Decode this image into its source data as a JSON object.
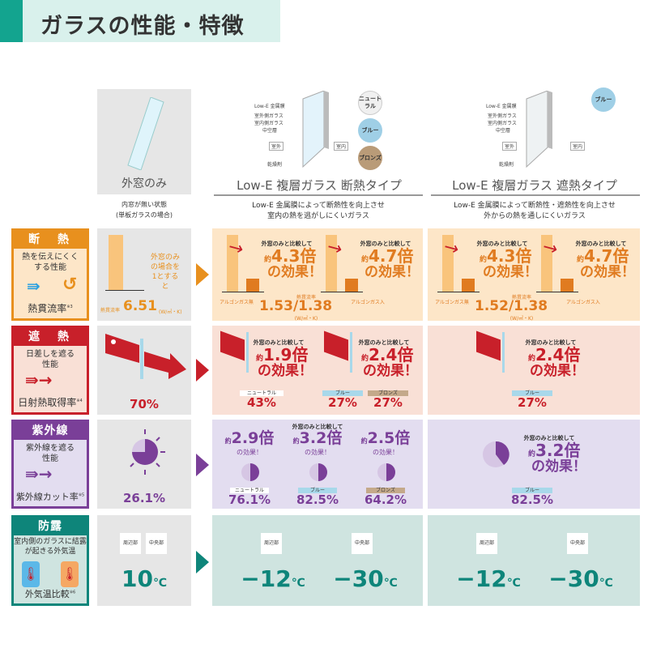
{
  "title": "ガラスの性能・特徴",
  "colors": {
    "teal": "#13a48f",
    "orange": "#e8901e",
    "red": "#c8202a",
    "purple": "#7a3f98",
    "dew": "#0e857a"
  },
  "columns": {
    "outer": {
      "title": "外窓のみ",
      "desc1": "内窓が無い状態",
      "desc2": "(単板ガラスの場合)"
    },
    "insul": {
      "title": "Low-E 複層ガラス 断熱タイプ",
      "desc1": "Low-E 金属膜によって断熱性を向上させ",
      "desc2": "室内の熱を逃がしにくいガラス",
      "colors": [
        "ニュートラル",
        "ブルー",
        "ブロンズ"
      ]
    },
    "shade": {
      "title": "Low-E 複層ガラス 遮熱タイプ",
      "desc1": "Low-E 金属膜によって断熱性・遮熱性を向上させ",
      "desc2": "外からの熱を通しにくいガラス",
      "colors": [
        "ブルー"
      ]
    }
  },
  "glass_labels": {
    "lowe": "Low-E 金属膜",
    "outside_glass": "室外側ガラス",
    "inside_glass": "室内側ガラス",
    "hollow": "中空層",
    "outside": "室外",
    "inside": "室内",
    "desiccant": "乾燥剤"
  },
  "compare": "外窓のみと比較して",
  "approx": "約",
  "effect": "の効果！",
  "rows": {
    "insulation": {
      "head": "断　熱",
      "text": "熱を伝えにくくする性能",
      "metric": "熱貫流率",
      "note": "※3",
      "outer_note": "外窓のみの場合を1とすると",
      "outer_label": "熱貫流率",
      "outer_value": "6.51",
      "unit": "(W/㎡・K)",
      "insul": {
        "a": "4.3倍",
        "b": "4.7倍",
        "label": "熱貫流率",
        "argon_no": "アルゴンガス無",
        "argon_yes": "アルゴンガス入",
        "value": "1.53/1.38",
        "unit": "(W/㎡・K)"
      },
      "shade": {
        "a": "4.3倍",
        "b": "4.7倍",
        "label": "熱貫流率",
        "argon_no": "アルゴンガス無",
        "argon_yes": "アルゴンガス入",
        "value": "1.52/1.38",
        "unit": "(W/㎡・K)"
      }
    },
    "solar": {
      "head": "遮　熱",
      "text": "日差しを遮る性能",
      "metric": "日射熱取得率",
      "note": "※4",
      "outer_value": "70%",
      "insul": {
        "a": "1.9倍",
        "b": "2.4倍",
        "tags": [
          "ニュートラル",
          "ブルー",
          "ブロンズ"
        ],
        "values": [
          "43%",
          "27%",
          "27%"
        ]
      },
      "shade": {
        "a": "2.4倍",
        "tag": "ブルー",
        "value": "27%"
      }
    },
    "uv": {
      "head": "紫外線",
      "text": "紫外線を遮る性能",
      "metric": "紫外線カット率",
      "note": "※5",
      "outer_value": "26.1%",
      "insul": {
        "mults": [
          "2.9倍",
          "3.2倍",
          "2.5倍"
        ],
        "effect": "の効果！",
        "tags": [
          "ニュートラル",
          "ブルー",
          "ブロンズ"
        ],
        "values": [
          "76.1%",
          "82.5%",
          "64.2%"
        ]
      },
      "shade": {
        "mult": "3.2倍",
        "tag": "ブルー",
        "value": "82.5%"
      }
    },
    "dew": {
      "head": "防露",
      "text": "室内側のガラスに結露が起きる外気温",
      "metric": "外気温比較",
      "note": "※6",
      "edge": "周辺部",
      "center": "中央部",
      "outer_value": "10",
      "unit": "℃",
      "insul": {
        "edge": "−12",
        "center": "−30"
      },
      "shade": {
        "edge": "−12",
        "center": "−30"
      }
    }
  }
}
